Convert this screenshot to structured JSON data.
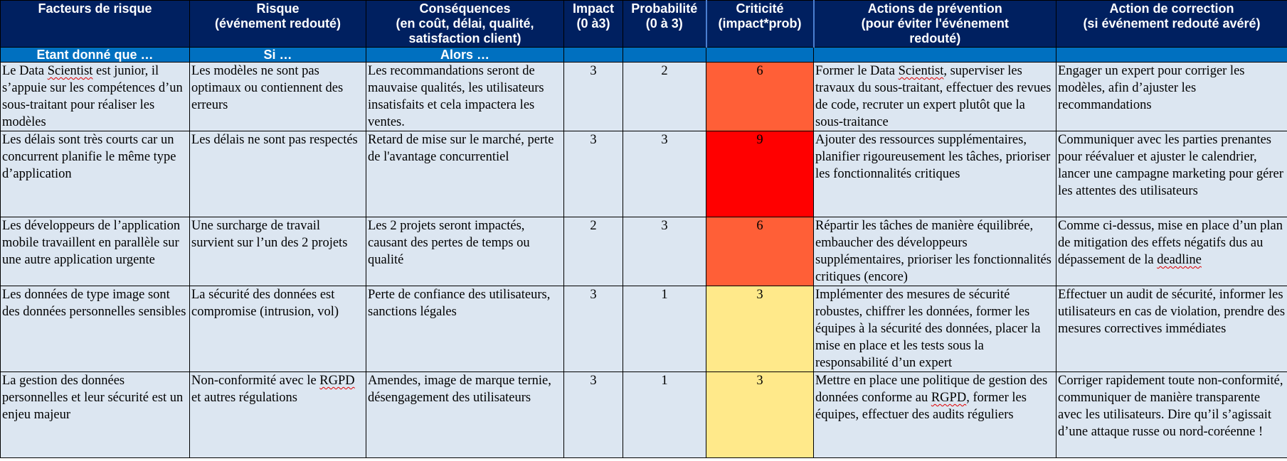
{
  "table": {
    "headers": [
      "Facteurs de risque",
      "Risque\n(événement redouté)",
      "Conséquences\n(en coût, délai, qualité,\nsatisfaction client)",
      "Impact\n(0 à3)",
      "Probabilité\n(0 à 3)",
      "Criticité\n(impact*prob)",
      "Actions de prévention\n(pour éviter l'événement\nredouté)",
      "Action de correction\n(si événement redouté avéré)"
    ],
    "subheaders": [
      "Etant donné que …",
      "Si …",
      "Alors …",
      "",
      "",
      "",
      "",
      ""
    ],
    "rows": [
      {
        "factor": "Le Data Scientist est junior, il s’appuie sur les compétences d’un sous-traitant pour réaliser les modèles",
        "risk": "Les modèles ne sont pas optimaux ou contiennent des erreurs",
        "consequence": "Les recommandations seront de mauvaise qualités, les utilisateurs insatisfaits et cela impactera les ventes.",
        "impact": "3",
        "probability": "2",
        "criticity": "6",
        "prevention": "Former le Data Scientist, superviser les travaux du sous-traitant, effectuer des revues de code, recruter un expert plutôt que la sous-traitance",
        "correction": "Engager un expert pour corriger les modèles, afin d’ajuster les recommandations"
      },
      {
        "factor": "Les délais sont très courts car un concurrent planifie le même type d’application",
        "risk": "Les délais ne sont pas respectés",
        "consequence": "Retard de mise sur le marché, perte de l'avantage concurrentiel",
        "impact": "3",
        "probability": "3",
        "criticity": "9",
        "prevention": "Ajouter des ressources supplémentaires, planifier rigoureusement les tâches, prioriser les fonctionnalités critiques",
        "correction": "Communiquer avec les parties prenantes pour réévaluer et ajuster le calendrier, lancer une campagne marketing pour gérer les attentes des utilisateurs"
      },
      {
        "factor": "Les développeurs de l’application mobile travaillent en parallèle sur une autre application urgente",
        "risk": "Une surcharge de travail survient sur l’un des 2 projets",
        "consequence": "Les 2 projets seront impactés, causant des pertes de temps ou qualité",
        "impact": "2",
        "probability": "3",
        "criticity": "6",
        "prevention": "Répartir les tâches de manière équilibrée, embaucher des développeurs supplémentaires, prioriser les fonctionnalités critiques (encore)",
        "correction": "Comme ci-dessus, mise en place d’un plan de mitigation des effets négatifs dus au dépassement de la deadline"
      },
      {
        "factor": "Les données de type image sont des données personnelles sensibles",
        "risk": "La sécurité des données est compromise (intrusion, vol)",
        "consequence": "Perte de confiance des utilisateurs, sanctions légales",
        "impact": "3",
        "probability": "1",
        "criticity": "3",
        "prevention": "Implémenter des mesures de sécurité robustes, chiffrer les données, former les équipes à la sécurité des données, placer la mise en place et les tests sous la responsabilité d’un expert",
        "correction": "Effectuer un audit de sécurité, informer les utilisateurs en cas de violation, prendre des mesures correctives immédiates"
      },
      {
        "factor": "La gestion des données personnelles et leur sécurité est un enjeu majeur",
        "risk": "Non-conformité avec le RGPD et autres régulations",
        "consequence": "Amendes, image de marque ternie, désengagement des utilisateurs",
        "impact": "3",
        "probability": "1",
        "criticity": "3",
        "prevention": "Mettre en place une politique de gestion des données conforme au RGPD, former les équipes, effectuer des audits réguliers",
        "correction": "Corriger rapidement toute non-conformité, communiquer de manière transparente avec les utilisateurs. Dire qu’il s’agissait d’une attaque russe ou nord-coréenne !"
      }
    ]
  },
  "colors": {
    "header_bg": "#002060",
    "subheader_bg": "#0070c0",
    "body_bg": "#dce6f1",
    "criticity_9": "#ff0000",
    "criticity_6": "#ff5f37",
    "criticity_3": "#ffe98a"
  }
}
